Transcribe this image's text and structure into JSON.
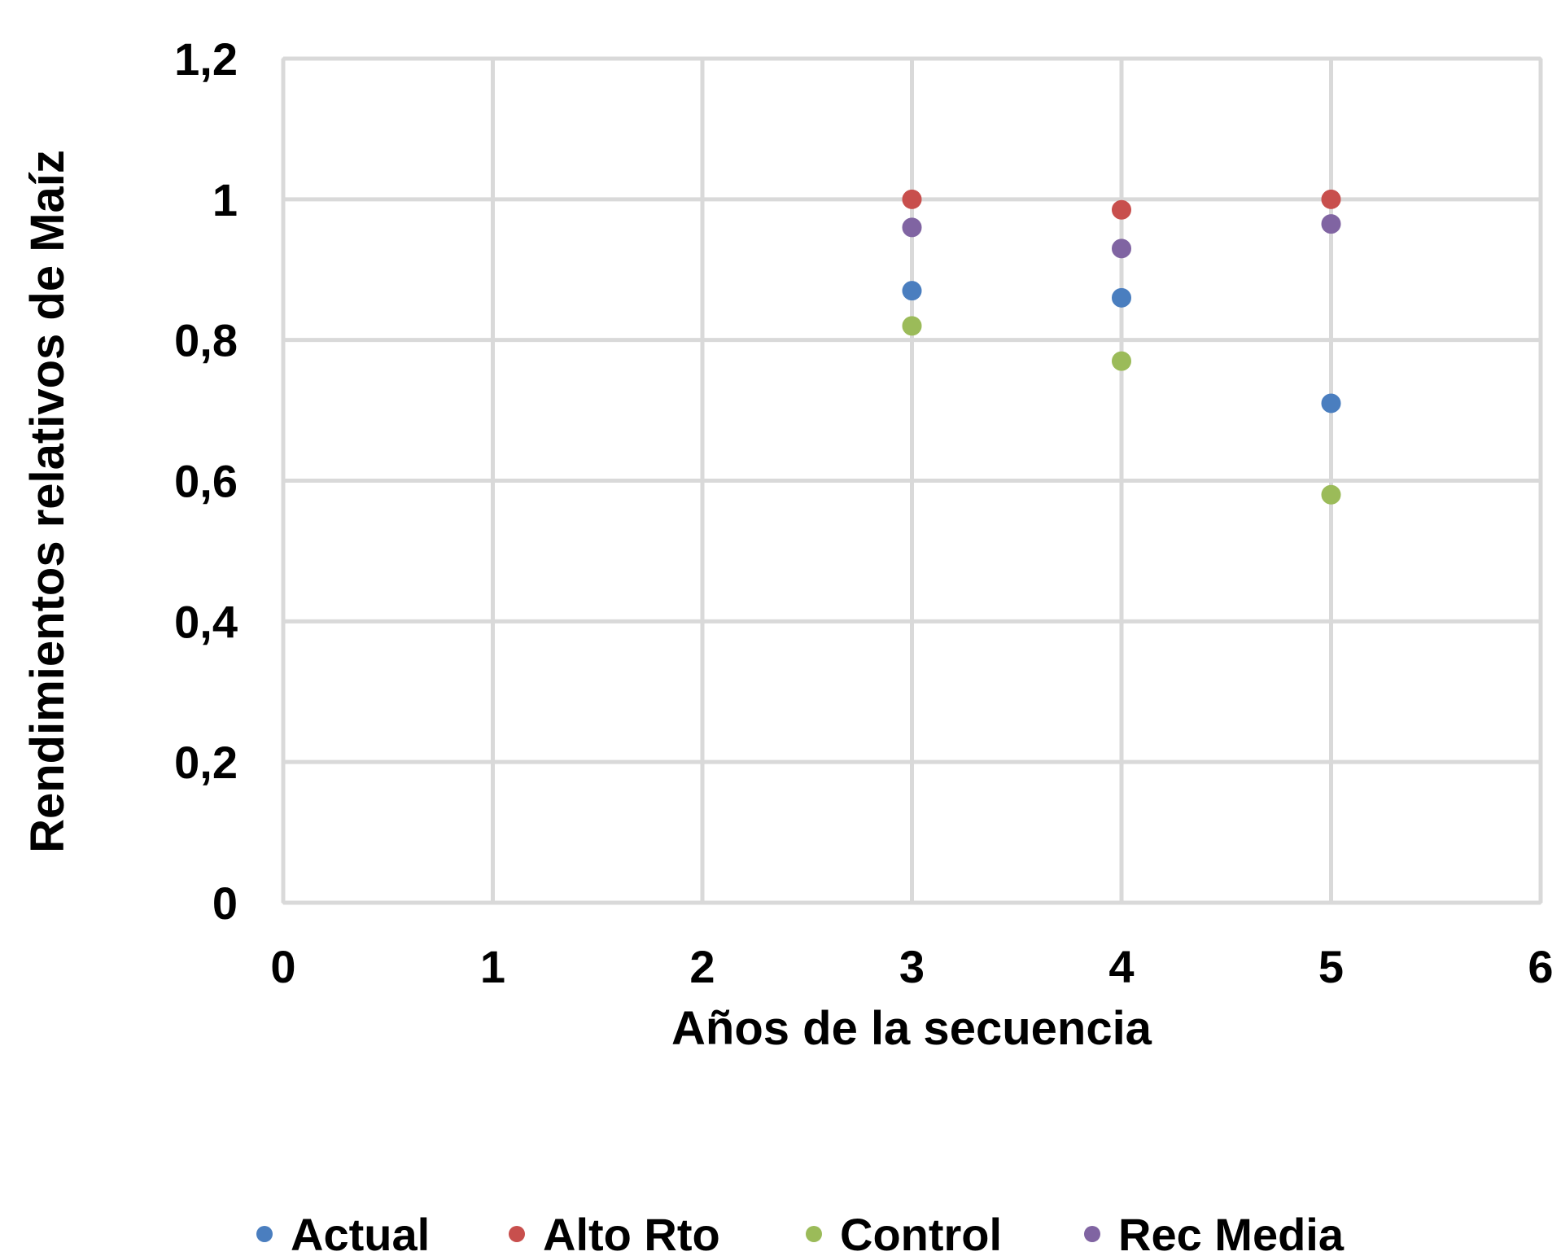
{
  "chart_data": {
    "type": "scatter",
    "title": "",
    "xlabel": "Años de la secuencia",
    "ylabel": "Rendimientos relativos de Maíz",
    "xlim": [
      0,
      6
    ],
    "ylim": [
      0,
      1.2
    ],
    "x_ticks": [
      "0",
      "1",
      "2",
      "3",
      "4",
      "5",
      "6"
    ],
    "y_ticks": [
      "0",
      "0,2",
      "0,4",
      "0,6",
      "0,8",
      "1",
      "1,2"
    ],
    "grid": true,
    "legend_position": "bottom",
    "series": [
      {
        "name": "Actual",
        "color": "#4a7ebf",
        "points": [
          {
            "x": 3,
            "y": 0.87
          },
          {
            "x": 4,
            "y": 0.86
          },
          {
            "x": 5,
            "y": 0.71
          }
        ]
      },
      {
        "name": "Alto Rto",
        "color": "#c84f4d",
        "points": [
          {
            "x": 3,
            "y": 1.0
          },
          {
            "x": 4,
            "y": 0.985
          },
          {
            "x": 5,
            "y": 1.0
          }
        ]
      },
      {
        "name": "Control",
        "color": "#9bbb59",
        "points": [
          {
            "x": 3,
            "y": 0.82
          },
          {
            "x": 4,
            "y": 0.77
          },
          {
            "x": 5,
            "y": 0.58
          }
        ]
      },
      {
        "name": "Rec Media",
        "color": "#8064a2",
        "points": [
          {
            "x": 3,
            "y": 0.96
          },
          {
            "x": 4,
            "y": 0.93
          },
          {
            "x": 5,
            "y": 0.965
          }
        ]
      }
    ]
  }
}
